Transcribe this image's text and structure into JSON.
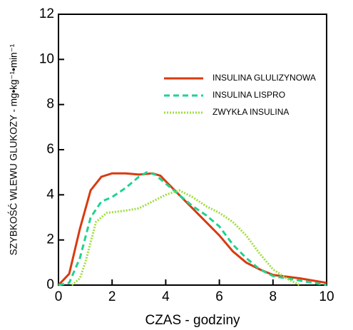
{
  "chart_data": {
    "type": "line",
    "xlabel": "CZAS - godziny",
    "ylabel": "SZYBKOŚĆ WLEWU GLUKOZY - mg•kg⁻¹•min⁻¹",
    "xlim": [
      0,
      10
    ],
    "xticks": [
      0,
      2,
      4,
      6,
      8,
      10
    ],
    "ylim": [
      0,
      12
    ],
    "yticks": [
      0,
      2,
      4,
      6,
      8,
      10,
      12
    ],
    "legend": "upper right",
    "series": [
      {
        "name": "INSULINA GLULIZYNOWA",
        "color": "#d93a0f",
        "style": "solid",
        "x": [
          0,
          0.4,
          0.8,
          1.2,
          1.6,
          2,
          2.5,
          3,
          3.5,
          3.8,
          4,
          4.5,
          5,
          5.5,
          6,
          6.5,
          7,
          7.5,
          8,
          9,
          10
        ],
        "values": [
          0,
          0.5,
          2.5,
          4.2,
          4.8,
          4.95,
          4.95,
          4.9,
          4.95,
          4.85,
          4.6,
          4.0,
          3.4,
          2.8,
          2.2,
          1.5,
          1.0,
          0.7,
          0.45,
          0.3,
          0.1
        ]
      },
      {
        "name": "INSULINA LISPRO",
        "color": "#1fd38f",
        "style": "dashed",
        "x": [
          0,
          0.4,
          0.8,
          1.2,
          1.6,
          2,
          2.5,
          3,
          3.3,
          3.6,
          4,
          4.5,
          5,
          5.5,
          6,
          6.5,
          7,
          7.5,
          8,
          9,
          10
        ],
        "values": [
          0,
          0.1,
          1.2,
          3.0,
          3.7,
          3.9,
          4.3,
          4.8,
          5.0,
          4.9,
          4.5,
          4.0,
          3.5,
          3.1,
          2.6,
          1.8,
          1.2,
          0.7,
          0.4,
          0.2,
          0
        ]
      },
      {
        "name": "ZWYKŁA INSULINA",
        "color": "#9ede3e",
        "style": "dotted",
        "x": [
          0.5,
          0.8,
          1,
          1.4,
          1.8,
          2.5,
          3,
          3.5,
          4,
          4.5,
          5,
          5.5,
          6,
          6.5,
          7,
          7.5,
          8,
          8.5,
          9
        ],
        "values": [
          0,
          0.3,
          1.0,
          2.8,
          3.2,
          3.3,
          3.4,
          3.7,
          4.0,
          4.2,
          3.9,
          3.5,
          3.2,
          2.8,
          2.2,
          1.4,
          0.7,
          0.3,
          0
        ]
      }
    ]
  }
}
